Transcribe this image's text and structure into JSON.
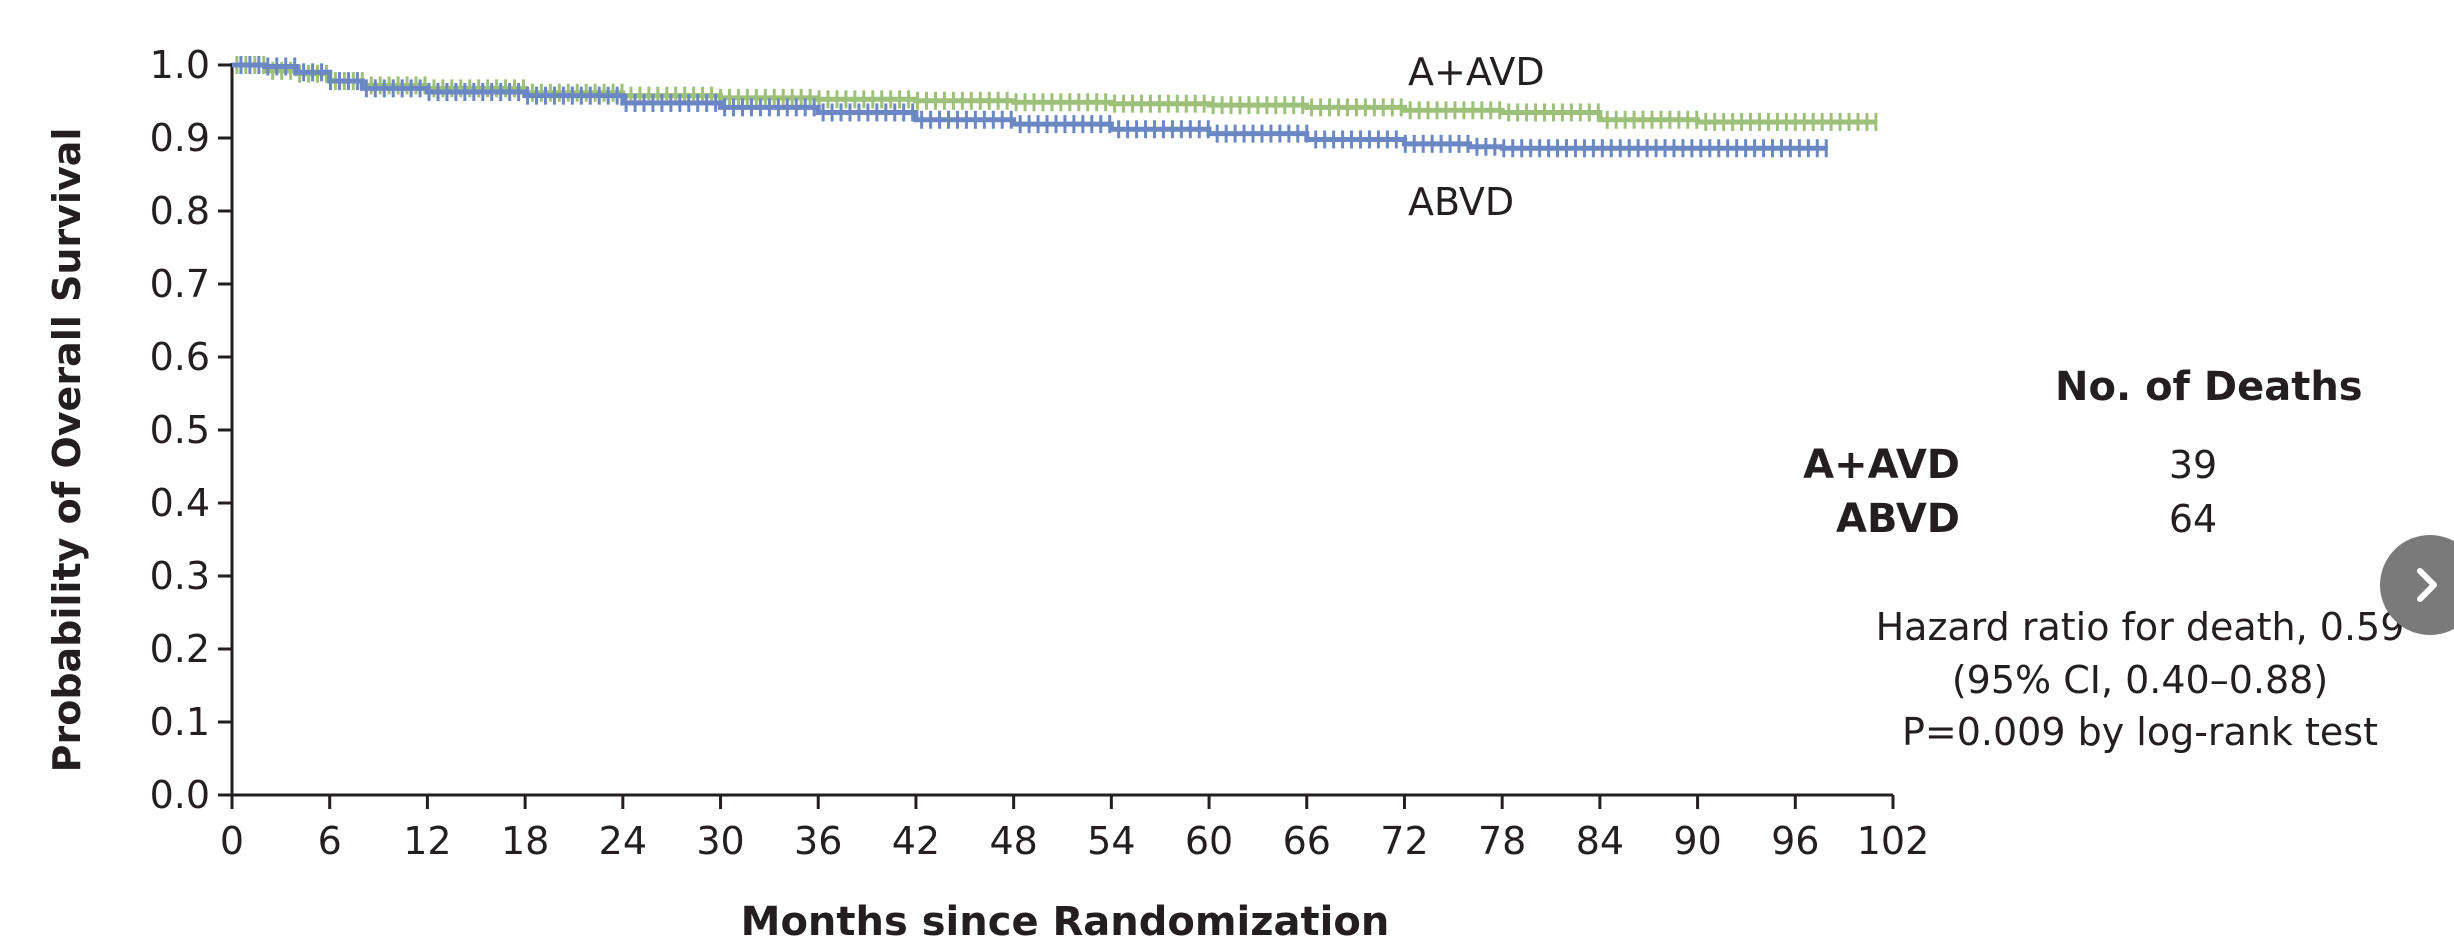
{
  "chart_data": {
    "type": "line",
    "subtype": "kaplan-meier",
    "title": "",
    "xlabel": "Months since Randomization",
    "ylabel": "Probability of Overall Survival",
    "xlim": [
      0,
      102
    ],
    "ylim": [
      0.0,
      1.0
    ],
    "x_ticks": [
      0,
      6,
      12,
      18,
      24,
      30,
      36,
      42,
      48,
      54,
      60,
      66,
      72,
      78,
      84,
      90,
      96,
      102
    ],
    "x_tick_labels": [
      "0",
      "6",
      "12",
      "18",
      "24",
      "30",
      "36",
      "42",
      "48",
      "54",
      "60",
      "66",
      "72",
      "78",
      "84",
      "90",
      "96",
      "102"
    ],
    "y_ticks": [
      0.0,
      0.1,
      0.2,
      0.3,
      0.4,
      0.5,
      0.6,
      0.7,
      0.8,
      0.9,
      1.0
    ],
    "y_tick_labels": [
      "0.0",
      "0.1",
      "0.2",
      "0.3",
      "0.4",
      "0.5",
      "0.6",
      "0.7",
      "0.8",
      "0.9",
      "1.0"
    ],
    "grid": false,
    "series": [
      {
        "name": "A+AVD",
        "color": "#9dc17a",
        "x": [
          0,
          2,
          4,
          6,
          8,
          12,
          18,
          24,
          30,
          36,
          42,
          48,
          54,
          60,
          66,
          72,
          78,
          84,
          90,
          96,
          101
        ],
        "y": [
          1.0,
          0.992,
          0.988,
          0.978,
          0.972,
          0.968,
          0.962,
          0.958,
          0.955,
          0.953,
          0.951,
          0.949,
          0.947,
          0.945,
          0.942,
          0.938,
          0.935,
          0.925,
          0.922,
          0.922,
          0.922
        ],
        "censor_until": 101
      },
      {
        "name": "ABVD",
        "color": "#6b87c4",
        "x": [
          0,
          2,
          4,
          6,
          8,
          12,
          18,
          24,
          30,
          36,
          42,
          48,
          54,
          60,
          66,
          72,
          76,
          78,
          84,
          90,
          96,
          98
        ],
        "y": [
          1.0,
          0.998,
          0.99,
          0.978,
          0.968,
          0.963,
          0.958,
          0.948,
          0.942,
          0.935,
          0.925,
          0.919,
          0.912,
          0.906,
          0.898,
          0.892,
          0.888,
          0.886,
          0.886,
          0.886,
          0.886,
          0.886
        ],
        "censor_until": 98
      }
    ],
    "annotations": {
      "series_labels": [
        {
          "series": "A+AVD",
          "text": "A+AVD"
        },
        {
          "series": "ABVD",
          "text": "ABVD"
        }
      ],
      "deaths_header": "No. of Deaths",
      "deaths_rows": [
        {
          "group": "A+AVD",
          "deaths": "39"
        },
        {
          "group": "ABVD",
          "deaths": "64"
        }
      ],
      "hazard_lines": [
        "Hazard ratio for death, 0.59",
        "(95% CI, 0.40–0.88)",
        "P=0.009 by log-rank test"
      ]
    }
  },
  "nav": {
    "next_icon": "chevron-right-icon"
  }
}
